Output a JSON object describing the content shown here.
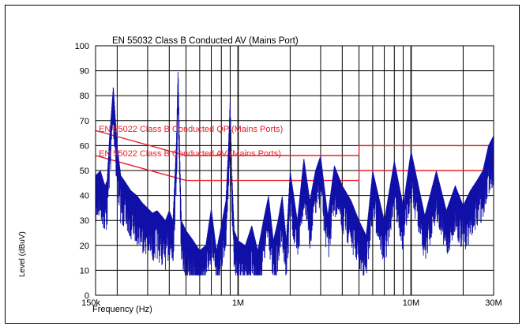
{
  "chart_data": {
    "type": "line",
    "title": "EN 55032 Class B Conducted AV (Mains Port)",
    "xlabel": "Frequency (Hz)",
    "ylabel": "Level (dBuV)",
    "xscale": "log",
    "xlim": [
      150000,
      30000000
    ],
    "ylim": [
      0,
      100
    ],
    "yticks": [
      0,
      10,
      20,
      30,
      40,
      50,
      60,
      70,
      80,
      90,
      100
    ],
    "xtick_labels": [
      {
        "value": 150000,
        "label": "150k"
      },
      {
        "value": 1000000,
        "label": "1M"
      },
      {
        "value": 10000000,
        "label": "10M"
      },
      {
        "value": 30000000,
        "label": "30M"
      }
    ],
    "grid": true,
    "colors": {
      "trace": "#1010a8",
      "limit": "#e8202a",
      "grid": "#000000"
    },
    "limits": [
      {
        "name": "EN 55022 Class B Conducted QP (Mains Ports)",
        "points": [
          [
            150000,
            66
          ],
          [
            500000,
            56
          ],
          [
            5000000,
            56
          ],
          [
            5000000,
            60
          ],
          [
            30000000,
            60
          ]
        ]
      },
      {
        "name": "EN 55022 Class B Conducted AV (Mains Ports)",
        "points": [
          [
            150000,
            56
          ],
          [
            500000,
            46
          ],
          [
            5000000,
            46
          ],
          [
            5000000,
            50
          ],
          [
            30000000,
            50
          ]
        ]
      }
    ],
    "series": [
      {
        "values_note": "",
        "x": [
          150000,
          160000,
          170000,
          175000,
          180000,
          190000,
          200000,
          210000,
          220000,
          240000,
          260000,
          280000,
          300000,
          320000,
          340000,
          360000,
          380000,
          400000,
          420000,
          440000,
          450000,
          460000,
          470000,
          500000,
          550000,
          600000,
          650000,
          700000,
          750000,
          800000,
          850000,
          880000,
          900000,
          920000,
          950000,
          1000000,
          1100000,
          1200000,
          1300000,
          1400000,
          1500000,
          1600000,
          1700000,
          1800000,
          1900000,
          2000000,
          2200000,
          2400000,
          2600000,
          2800000,
          3000000,
          3300000,
          3600000,
          4000000,
          4500000,
          5000000,
          5500000,
          6000000,
          7000000,
          8000000,
          9000000,
          10000000,
          12000000,
          14000000,
          16000000,
          18000000,
          20000000,
          22000000,
          24000000,
          26000000,
          28000000,
          30000000
        ],
        "values": [
          48,
          50,
          44,
          46,
          62,
          84,
          60,
          48,
          46,
          42,
          40,
          37,
          35,
          33,
          34,
          32,
          30,
          34,
          30,
          62,
          91,
          58,
          30,
          26,
          22,
          18,
          20,
          35,
          18,
          28,
          38,
          60,
          79,
          50,
          26,
          22,
          20,
          28,
          18,
          30,
          40,
          22,
          30,
          40,
          22,
          50,
          30,
          55,
          38,
          50,
          56,
          32,
          52,
          44,
          38,
          30,
          24,
          50,
          30,
          54,
          36,
          58,
          32,
          50,
          34,
          44,
          36,
          42,
          46,
          50,
          60,
          64
        ]
      }
    ]
  }
}
